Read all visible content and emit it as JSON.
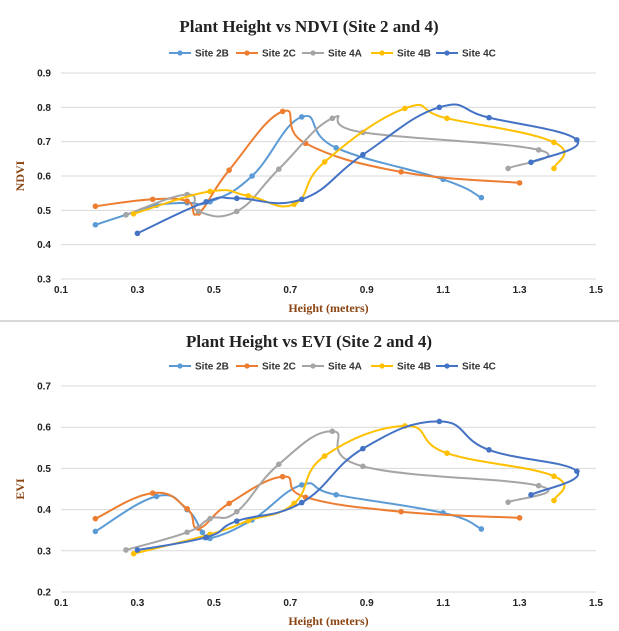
{
  "chart_data": [
    {
      "type": "line",
      "title": "Plant Height vs NDVI (Site 2 and 4)",
      "xlabel": "Height (meters)",
      "ylabel": "NDVI",
      "xlim": [
        0.1,
        1.5
      ],
      "ylim": [
        0.3,
        0.9
      ],
      "x_ticks": [
        "0.1",
        "0.3",
        "0.5",
        "0.7",
        "0.9",
        "1.1",
        "1.3",
        "1.5"
      ],
      "y_ticks": [
        "0.3",
        "0.4",
        "0.5",
        "0.6",
        "0.7",
        "0.8",
        "0.9"
      ],
      "grid": "horizontal",
      "legend": "top",
      "series": [
        {
          "name": "Site 2B",
          "color": "#5b9bd5",
          "x": [
            0.19,
            0.27,
            0.35,
            0.43,
            0.49,
            0.6,
            0.73,
            0.82,
            1.1,
            1.2
          ],
          "y": [
            0.458,
            0.487,
            0.515,
            0.522,
            0.525,
            0.6,
            0.772,
            0.682,
            0.59,
            0.537
          ]
        },
        {
          "name": "Site 2C",
          "color": "#ed7d31",
          "x": [
            0.19,
            0.34,
            0.43,
            0.46,
            0.54,
            0.68,
            0.74,
            0.99,
            1.3
          ],
          "y": [
            0.512,
            0.532,
            0.527,
            0.492,
            0.617,
            0.788,
            0.695,
            0.612,
            0.58
          ]
        },
        {
          "name": "Site 4A",
          "color": "#a5a5a5",
          "x": [
            0.27,
            0.43,
            0.46,
            0.56,
            0.67,
            0.81,
            0.89,
            1.35,
            1.27
          ],
          "y": [
            0.487,
            0.546,
            0.497,
            0.497,
            0.62,
            0.768,
            0.727,
            0.676,
            0.622
          ]
        },
        {
          "name": "Site 4B",
          "color": "#ffc000",
          "x": [
            0.29,
            0.49,
            0.59,
            0.71,
            0.79,
            1.0,
            1.11,
            1.39,
            1.39
          ],
          "y": [
            0.49,
            0.555,
            0.542,
            0.518,
            0.641,
            0.797,
            0.768,
            0.698,
            0.622
          ]
        },
        {
          "name": "Site 4C",
          "color": "#4472c4",
          "x": [
            0.3,
            0.48,
            0.56,
            0.73,
            0.89,
            1.09,
            1.22,
            1.45,
            1.33
          ],
          "y": [
            0.433,
            0.525,
            0.535,
            0.532,
            0.662,
            0.8,
            0.77,
            0.705,
            0.64
          ]
        }
      ]
    },
    {
      "type": "line",
      "title": "Plant Height vs EVI (Site 2 and 4)",
      "xlabel": "Height (meters)",
      "ylabel": "EVI",
      "xlim": [
        0.1,
        1.5
      ],
      "ylim": [
        0.2,
        0.7
      ],
      "x_ticks": [
        "0.1",
        "0.3",
        "0.5",
        "0.7",
        "0.9",
        "1.1",
        "1.3",
        "1.5"
      ],
      "y_ticks": [
        "0.2",
        "0.3",
        "0.4",
        "0.5",
        "0.6",
        "0.7"
      ],
      "grid": "horizontal",
      "legend": "top",
      "series": [
        {
          "name": "Site 2B",
          "color": "#5b9bd5",
          "x": [
            0.19,
            0.35,
            0.43,
            0.47,
            0.49,
            0.6,
            0.73,
            0.82,
            1.1,
            1.2
          ],
          "y": [
            0.347,
            0.432,
            0.4,
            0.345,
            0.33,
            0.375,
            0.46,
            0.436,
            0.392,
            0.353
          ]
        },
        {
          "name": "Site 2C",
          "color": "#ed7d31",
          "x": [
            0.19,
            0.34,
            0.43,
            0.46,
            0.54,
            0.68,
            0.74,
            0.99,
            1.3
          ],
          "y": [
            0.378,
            0.44,
            0.402,
            0.355,
            0.415,
            0.48,
            0.43,
            0.395,
            0.38
          ]
        },
        {
          "name": "Site 4A",
          "color": "#a5a5a5",
          "x": [
            0.27,
            0.43,
            0.49,
            0.56,
            0.67,
            0.81,
            0.89,
            1.35,
            1.27
          ],
          "y": [
            0.302,
            0.345,
            0.378,
            0.395,
            0.51,
            0.59,
            0.505,
            0.458,
            0.418
          ]
        },
        {
          "name": "Site 4B",
          "color": "#ffc000",
          "x": [
            0.29,
            0.49,
            0.59,
            0.71,
            0.79,
            1.0,
            1.11,
            1.39,
            1.39
          ],
          "y": [
            0.293,
            0.34,
            0.373,
            0.415,
            0.53,
            0.603,
            0.537,
            0.481,
            0.422
          ]
        },
        {
          "name": "Site 4C",
          "color": "#4472c4",
          "x": [
            0.3,
            0.48,
            0.56,
            0.73,
            0.89,
            1.09,
            1.22,
            1.45,
            1.33
          ],
          "y": [
            0.302,
            0.333,
            0.372,
            0.417,
            0.548,
            0.614,
            0.545,
            0.493,
            0.436
          ]
        }
      ]
    }
  ]
}
